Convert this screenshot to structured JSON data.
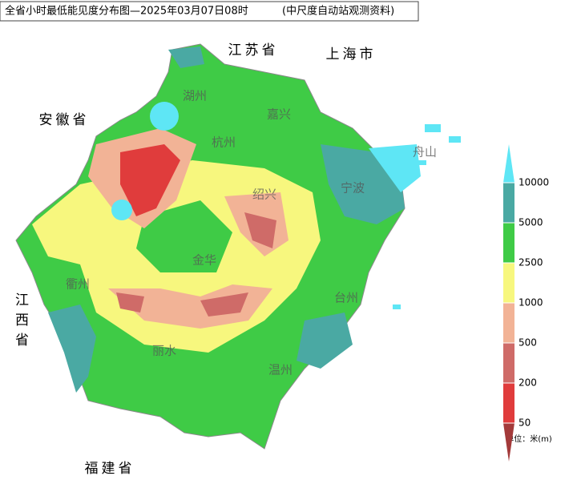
{
  "title": "全省小时最低能见度分布图—2025年03月07日08时",
  "source": "(中尺度自动站观测资料)",
  "neighbors": [
    "江苏省",
    "上海市",
    "安徽省",
    "江西省",
    "福建省"
  ],
  "cities": [
    "湖州",
    "嘉兴",
    "杭州",
    "绍兴",
    "宁波",
    "舟山",
    "金华",
    "衢州",
    "台州",
    "丽水",
    "温州"
  ],
  "legend": {
    "values": [
      50,
      200,
      500,
      1000,
      2500,
      5000,
      10000
    ],
    "colors": [
      "#a33a3a",
      "#e03c3c",
      "#cf6b68",
      "#f2b396",
      "#f7f77e",
      "#3fcb46",
      "#4aa9a3",
      "#5ee6f5"
    ],
    "unit": "单位：米(m)"
  }
}
